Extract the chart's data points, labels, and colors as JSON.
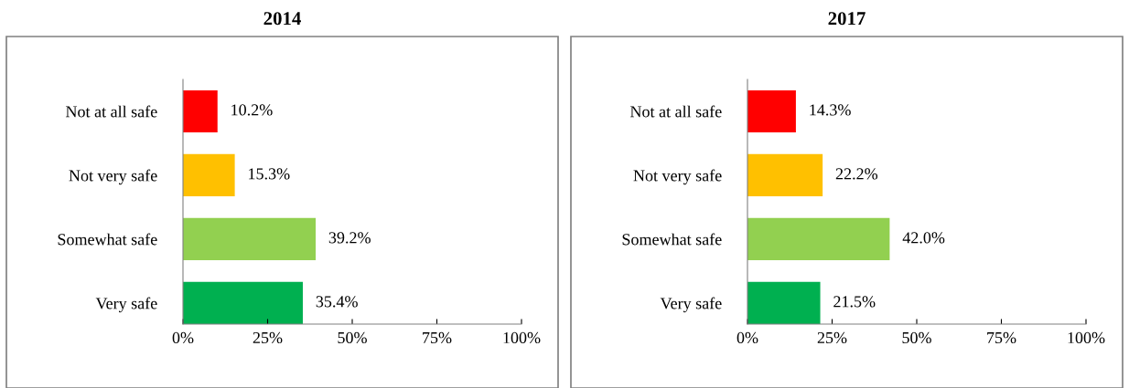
{
  "chart_data": [
    {
      "type": "bar",
      "orientation": "horizontal",
      "title": "2014",
      "categories": [
        "Not at all safe",
        "Not very safe",
        "Somewhat safe",
        "Very safe"
      ],
      "values": [
        10.2,
        15.3,
        39.2,
        35.4
      ],
      "colors": [
        "#ff0000",
        "#ffc000",
        "#92d050",
        "#00b050"
      ],
      "value_labels": [
        "10.2%",
        "15.3%",
        "39.2%",
        "35.4%"
      ],
      "xlim": [
        0,
        100
      ],
      "xticks": [
        {
          "value": 0,
          "label": "0%"
        },
        {
          "value": 25,
          "label": "25%"
        },
        {
          "value": 50,
          "label": "50%"
        },
        {
          "value": 75,
          "label": "75%"
        },
        {
          "value": 100,
          "label": "100%"
        }
      ],
      "grid": false,
      "legend": false
    },
    {
      "type": "bar",
      "orientation": "horizontal",
      "title": "2017",
      "categories": [
        "Not at all safe",
        "Not very safe",
        "Somewhat safe",
        "Very safe"
      ],
      "values": [
        14.3,
        22.2,
        42.0,
        21.5
      ],
      "colors": [
        "#ff0000",
        "#ffc000",
        "#92d050",
        "#00b050"
      ],
      "value_labels": [
        "14.3%",
        "22.2%",
        "42.0%",
        "21.5%"
      ],
      "xlim": [
        0,
        100
      ],
      "xticks": [
        {
          "value": 0,
          "label": "0%"
        },
        {
          "value": 25,
          "label": "25%"
        },
        {
          "value": 50,
          "label": "50%"
        },
        {
          "value": 75,
          "label": "75%"
        },
        {
          "value": 100,
          "label": "100%"
        }
      ],
      "grid": false,
      "legend": false
    }
  ]
}
